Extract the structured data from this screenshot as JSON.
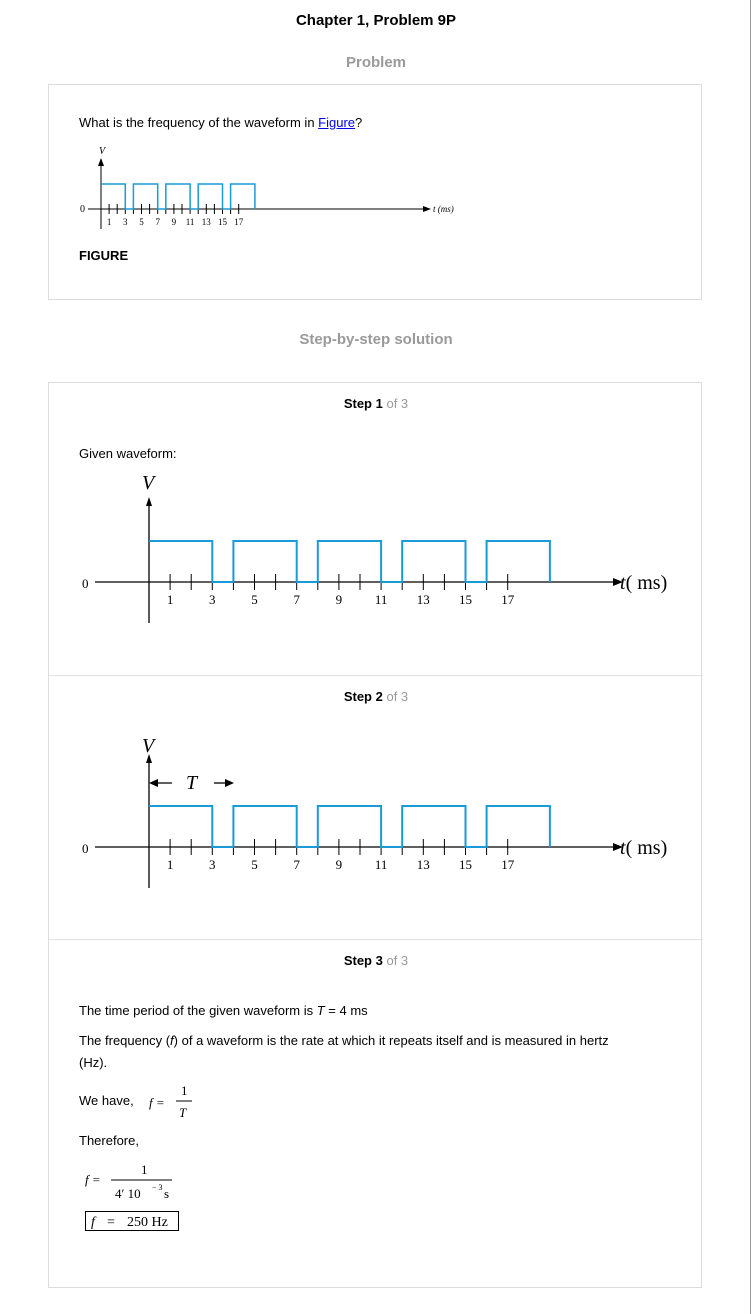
{
  "page_title": "Chapter 1, Problem 9P",
  "problem": {
    "heading": "Problem",
    "question_before": "What is the frequency of the waveform in ",
    "question_link": "Figure",
    "question_after": "?",
    "figure_caption": "FIGURE",
    "figure": {
      "y_label": "V",
      "zero_label": "0",
      "x_label": "t (ms)",
      "ticks": [
        "1",
        "3",
        "5",
        "7",
        "9",
        "11",
        "13",
        "15",
        "17"
      ]
    }
  },
  "solution": {
    "heading": "Step-by-step solution",
    "steps": [
      {
        "label": "Step 1",
        "of": "of 3",
        "text": "Given waveform:",
        "figure": {
          "y_label": "V",
          "zero_label": "0",
          "x_label": "t( ms)",
          "ticks": [
            "1",
            "3",
            "5",
            "7",
            "9",
            "11",
            "13",
            "15",
            "17"
          ]
        }
      },
      {
        "label": "Step 2",
        "of": "of 3",
        "figure": {
          "y_label": "V",
          "period_label": "T",
          "zero_label": "0",
          "x_label": "t( ms)",
          "ticks": [
            "1",
            "3",
            "5",
            "7",
            "9",
            "11",
            "13",
            "15",
            "17"
          ]
        }
      },
      {
        "label": "Step 3",
        "of": "of 3",
        "line1_before": "The time period of the given waveform is ",
        "line1_var": "T",
        "line1_after": " = 4 ms",
        "line2_part1": "The frequency (",
        "line2_var": "f",
        "line2_part2": ") of a waveform is the rate at which it repeats itself and is measured in hertz",
        "line2_part3": "(Hz).",
        "we_have": "We have,",
        "formula_lhs": "f =",
        "formula_num": "1",
        "formula_den": "T",
        "therefore": "Therefore,",
        "calc_lhs": "f =",
        "calc_num": "1",
        "calc_den_a": "4′ 10",
        "calc_den_exp": "− 3",
        "calc_den_unit": "s",
        "result_var": "f",
        "result_eq": "=",
        "result_val": "250 Hz"
      }
    ]
  },
  "waveform": {
    "period_ms": 4,
    "high_start_ms": [
      0,
      4,
      8,
      12,
      16
    ],
    "high_duration_ms": 3,
    "line_color": "#1a9bd7"
  }
}
